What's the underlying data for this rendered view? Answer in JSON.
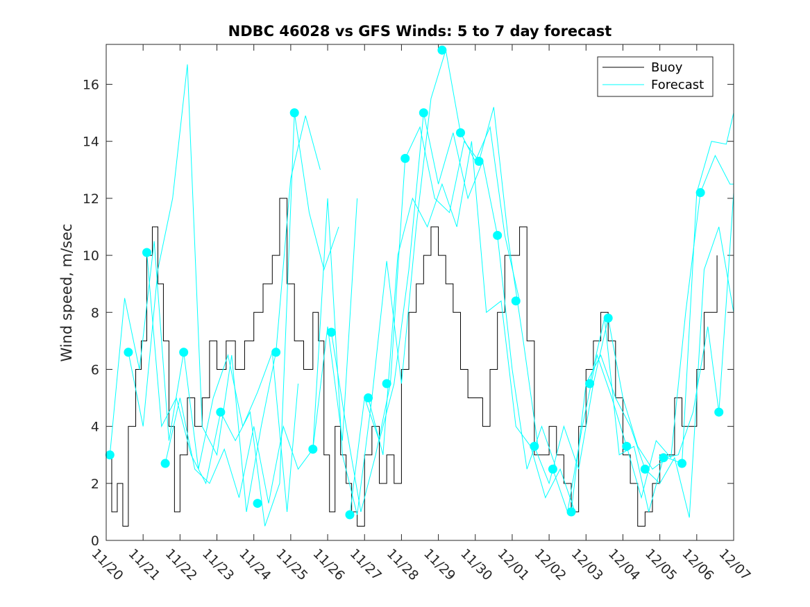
{
  "chart_data": {
    "type": "line",
    "title": "NDBC 46028 vs GFS Winds: 5 to 7 day forecast",
    "xlabel": "",
    "ylabel": "Wind speed, m/sec",
    "xlim": [
      0,
      17
    ],
    "ylim": [
      0,
      17.4
    ],
    "xticks": [
      0,
      1,
      2,
      3,
      4,
      5,
      6,
      7,
      8,
      9,
      10,
      11,
      12,
      13,
      14,
      15,
      16,
      17
    ],
    "xtick_labels": [
      "11/20",
      "11/21",
      "11/22",
      "11/23",
      "11/24",
      "11/25",
      "11/26",
      "11/27",
      "11/28",
      "11/29",
      "11/30",
      "12/01",
      "12/02",
      "12/03",
      "12/04",
      "12/05",
      "12/06",
      "12/07"
    ],
    "yticks": [
      0,
      2,
      4,
      6,
      8,
      10,
      12,
      14,
      16
    ],
    "ytick_labels": [
      "0",
      "2",
      "4",
      "6",
      "8",
      "10",
      "12",
      "14",
      "16"
    ],
    "legend": {
      "position": "top-right",
      "entries": [
        "Buoy",
        "Forecast"
      ]
    },
    "colors": {
      "buoy": "#000000",
      "forecast": "#00ffff",
      "axes": "#262626"
    },
    "buoy": {
      "name": "Buoy",
      "x": [
        0,
        0.15,
        0.3,
        0.45,
        0.6,
        0.8,
        0.95,
        1.1,
        1.25,
        1.4,
        1.55,
        1.7,
        1.85,
        2.0,
        2.2,
        2.4,
        2.6,
        2.8,
        3.0,
        3.25,
        3.5,
        3.75,
        4.0,
        4.25,
        4.5,
        4.7,
        4.9,
        5.1,
        5.35,
        5.6,
        5.75,
        5.9,
        6.05,
        6.2,
        6.35,
        6.5,
        6.65,
        6.8,
        7.0,
        7.2,
        7.4,
        7.6,
        7.8,
        8.0,
        8.2,
        8.4,
        8.6,
        8.8,
        9.0,
        9.2,
        9.4,
        9.6,
        9.8,
        10.0,
        10.2,
        10.4,
        10.6,
        10.8,
        11.0,
        11.2,
        11.4,
        11.6,
        11.8,
        12.0,
        12.2,
        12.4,
        12.6,
        12.8,
        13.0,
        13.2,
        13.4,
        13.6,
        13.8,
        14.0,
        14.2,
        14.4,
        14.6,
        14.8,
        15.0,
        15.2,
        15.4,
        15.6,
        15.8,
        16.0,
        16.2,
        16.4,
        16.55
      ],
      "y": [
        3,
        1,
        2,
        0.5,
        4,
        6,
        7,
        10,
        11,
        9,
        7,
        4,
        1,
        3,
        5,
        4,
        5,
        7,
        6,
        7,
        6,
        7,
        8,
        9,
        10,
        12,
        9,
        7,
        6,
        8,
        7,
        3,
        1,
        4,
        3,
        2,
        1,
        0.5,
        3,
        4,
        2,
        3,
        2,
        6,
        8,
        9,
        10,
        11,
        10,
        9,
        8,
        6,
        5,
        5,
        4,
        6,
        8,
        10,
        10,
        11,
        7,
        3,
        3,
        4,
        3,
        2,
        1,
        4,
        6,
        7,
        8,
        7,
        5,
        3,
        2,
        0.5,
        1,
        2,
        3,
        3,
        5,
        4,
        4,
        6,
        8,
        8,
        10
      ]
    },
    "forecast_dots": {
      "name": "Forecast",
      "x": [
        0.1,
        0.6,
        1.1,
        1.6,
        2.1,
        3.1,
        4.1,
        4.6,
        5.1,
        5.6,
        6.1,
        6.6,
        7.1,
        7.6,
        8.1,
        8.6,
        9.1,
        9.6,
        10.1,
        10.6,
        11.1,
        11.6,
        12.1,
        12.6,
        13.1,
        13.6,
        14.1,
        14.6,
        15.1,
        15.6,
        16.1,
        16.6
      ],
      "y": [
        3.0,
        6.6,
        10.1,
        2.7,
        6.6,
        4.5,
        1.3,
        6.6,
        15.0,
        3.2,
        7.3,
        0.9,
        5.0,
        5.5,
        13.4,
        15.0,
        17.2,
        14.3,
        13.3,
        10.7,
        8.4,
        3.3,
        2.5,
        1.0,
        5.5,
        7.8,
        3.3,
        2.5,
        2.9,
        2.7,
        12.2,
        4.5
      ]
    },
    "forecast_runs": [
      {
        "x": [
          0.1,
          0.5,
          0.9,
          1.3,
          1.7,
          2.1,
          2.5,
          2.9,
          3.3,
          3.7,
          4.1,
          4.5,
          4.9,
          5.2
        ],
        "y": [
          3.0,
          8.5,
          6.0,
          10.5,
          3.5,
          6.6,
          2.5,
          5.0,
          6.5,
          4.0,
          5.2,
          6.6,
          1.0,
          5.5
        ]
      },
      {
        "x": [
          0.6,
          1.0,
          1.4,
          1.8,
          2.2,
          2.6,
          3.0,
          3.4,
          3.8,
          4.2,
          4.6,
          5.0,
          5.4,
          5.8
        ],
        "y": [
          6.6,
          4.0,
          9.5,
          12.0,
          16.7,
          4.0,
          3.0,
          6.5,
          1.0,
          4.0,
          6.6,
          12.7,
          14.9,
          13.0
        ]
      },
      {
        "x": [
          1.1,
          1.5,
          1.9,
          2.3,
          2.7,
          3.1,
          3.5,
          3.9,
          4.3,
          4.7,
          5.1,
          5.5,
          5.9,
          6.3
        ],
        "y": [
          10.1,
          4.0,
          5.0,
          3.0,
          2.0,
          4.5,
          3.5,
          4.5,
          0.5,
          2.0,
          15.0,
          11.5,
          9.5,
          11.0
        ]
      },
      {
        "x": [
          1.6,
          2.0,
          2.4,
          2.8,
          3.2,
          3.6,
          4.0,
          4.4,
          4.8,
          5.2,
          5.6,
          6.0,
          6.4,
          6.8
        ],
        "y": [
          2.7,
          5.0,
          2.5,
          2.0,
          3.2,
          1.5,
          4.0,
          1.3,
          4.0,
          2.5,
          3.2,
          7.5,
          3.5,
          12.0
        ]
      },
      {
        "x": [
          5.6,
          6.0,
          6.4,
          6.8,
          7.2,
          7.6,
          8.0,
          8.4,
          8.8,
          9.2,
          9.6,
          10.0,
          10.4,
          10.8,
          11.2
        ],
        "y": [
          3.2,
          12.0,
          3.0,
          0.9,
          5.0,
          9.8,
          5.5,
          11.0,
          15.5,
          17.2,
          14.3,
          13.3,
          14.5,
          10.7,
          8.4
        ]
      },
      {
        "x": [
          6.1,
          6.5,
          6.9,
          7.3,
          7.7,
          8.1,
          8.5,
          8.9,
          9.3,
          9.7,
          10.1,
          10.5,
          10.9,
          11.3,
          11.7
        ],
        "y": [
          7.3,
          4.0,
          1.0,
          3.0,
          5.5,
          13.4,
          14.5,
          12.0,
          11.5,
          14.0,
          13.3,
          15.2,
          10.5,
          7.0,
          3.3
        ]
      },
      {
        "x": [
          6.6,
          7.0,
          7.4,
          7.8,
          8.2,
          8.6,
          9.0,
          9.4,
          9.8,
          10.2,
          10.6,
          11.0,
          11.4,
          11.8,
          12.2
        ],
        "y": [
          0.9,
          5.0,
          3.5,
          5.5,
          9.5,
          15.0,
          12.5,
          14.3,
          12.0,
          13.3,
          10.7,
          6.0,
          2.5,
          4.0,
          2.5
        ]
      },
      {
        "x": [
          7.1,
          7.5,
          7.9,
          8.3,
          8.7,
          9.1,
          9.5,
          9.9,
          10.3,
          10.7,
          11.1,
          11.5,
          11.9,
          12.3,
          12.7
        ],
        "y": [
          5.0,
          3.0,
          10.0,
          12.0,
          11.0,
          12.5,
          11.0,
          14.0,
          8.0,
          8.4,
          4.0,
          3.3,
          1.5,
          2.5,
          1.0
        ]
      },
      {
        "x": [
          11.6,
          12.0,
          12.4,
          12.8,
          13.2,
          13.6,
          14.0,
          14.4,
          14.8,
          15.2,
          15.6,
          16.0,
          16.4,
          16.8,
          17.0
        ],
        "y": [
          3.3,
          2.0,
          4.0,
          2.5,
          5.5,
          7.8,
          5.0,
          3.3,
          2.5,
          2.9,
          2.7,
          12.2,
          14.0,
          13.9,
          15.0
        ]
      },
      {
        "x": [
          12.1,
          12.5,
          12.9,
          13.3,
          13.7,
          14.1,
          14.5,
          14.9,
          15.3,
          15.7,
          16.1,
          16.5,
          16.9,
          17.0
        ],
        "y": [
          2.5,
          1.0,
          4.0,
          6.5,
          5.0,
          3.3,
          1.5,
          3.5,
          2.9,
          8.0,
          12.2,
          13.5,
          12.5,
          12.5
        ]
      },
      {
        "x": [
          12.6,
          13.0,
          13.4,
          13.8,
          14.2,
          14.6,
          15.0,
          15.4,
          15.8,
          16.2,
          16.6,
          17.0
        ],
        "y": [
          1.0,
          5.5,
          6.5,
          5.0,
          4.0,
          2.5,
          2.0,
          2.9,
          0.8,
          9.5,
          11.0,
          8.0
        ]
      },
      {
        "x": [
          13.1,
          13.5,
          13.9,
          14.3,
          14.7,
          15.1,
          15.5,
          15.9,
          16.3,
          16.6,
          17.0
        ],
        "y": [
          5.5,
          7.8,
          3.0,
          3.3,
          1.0,
          2.9,
          3.0,
          4.5,
          7.5,
          4.5,
          12.2
        ]
      }
    ]
  }
}
